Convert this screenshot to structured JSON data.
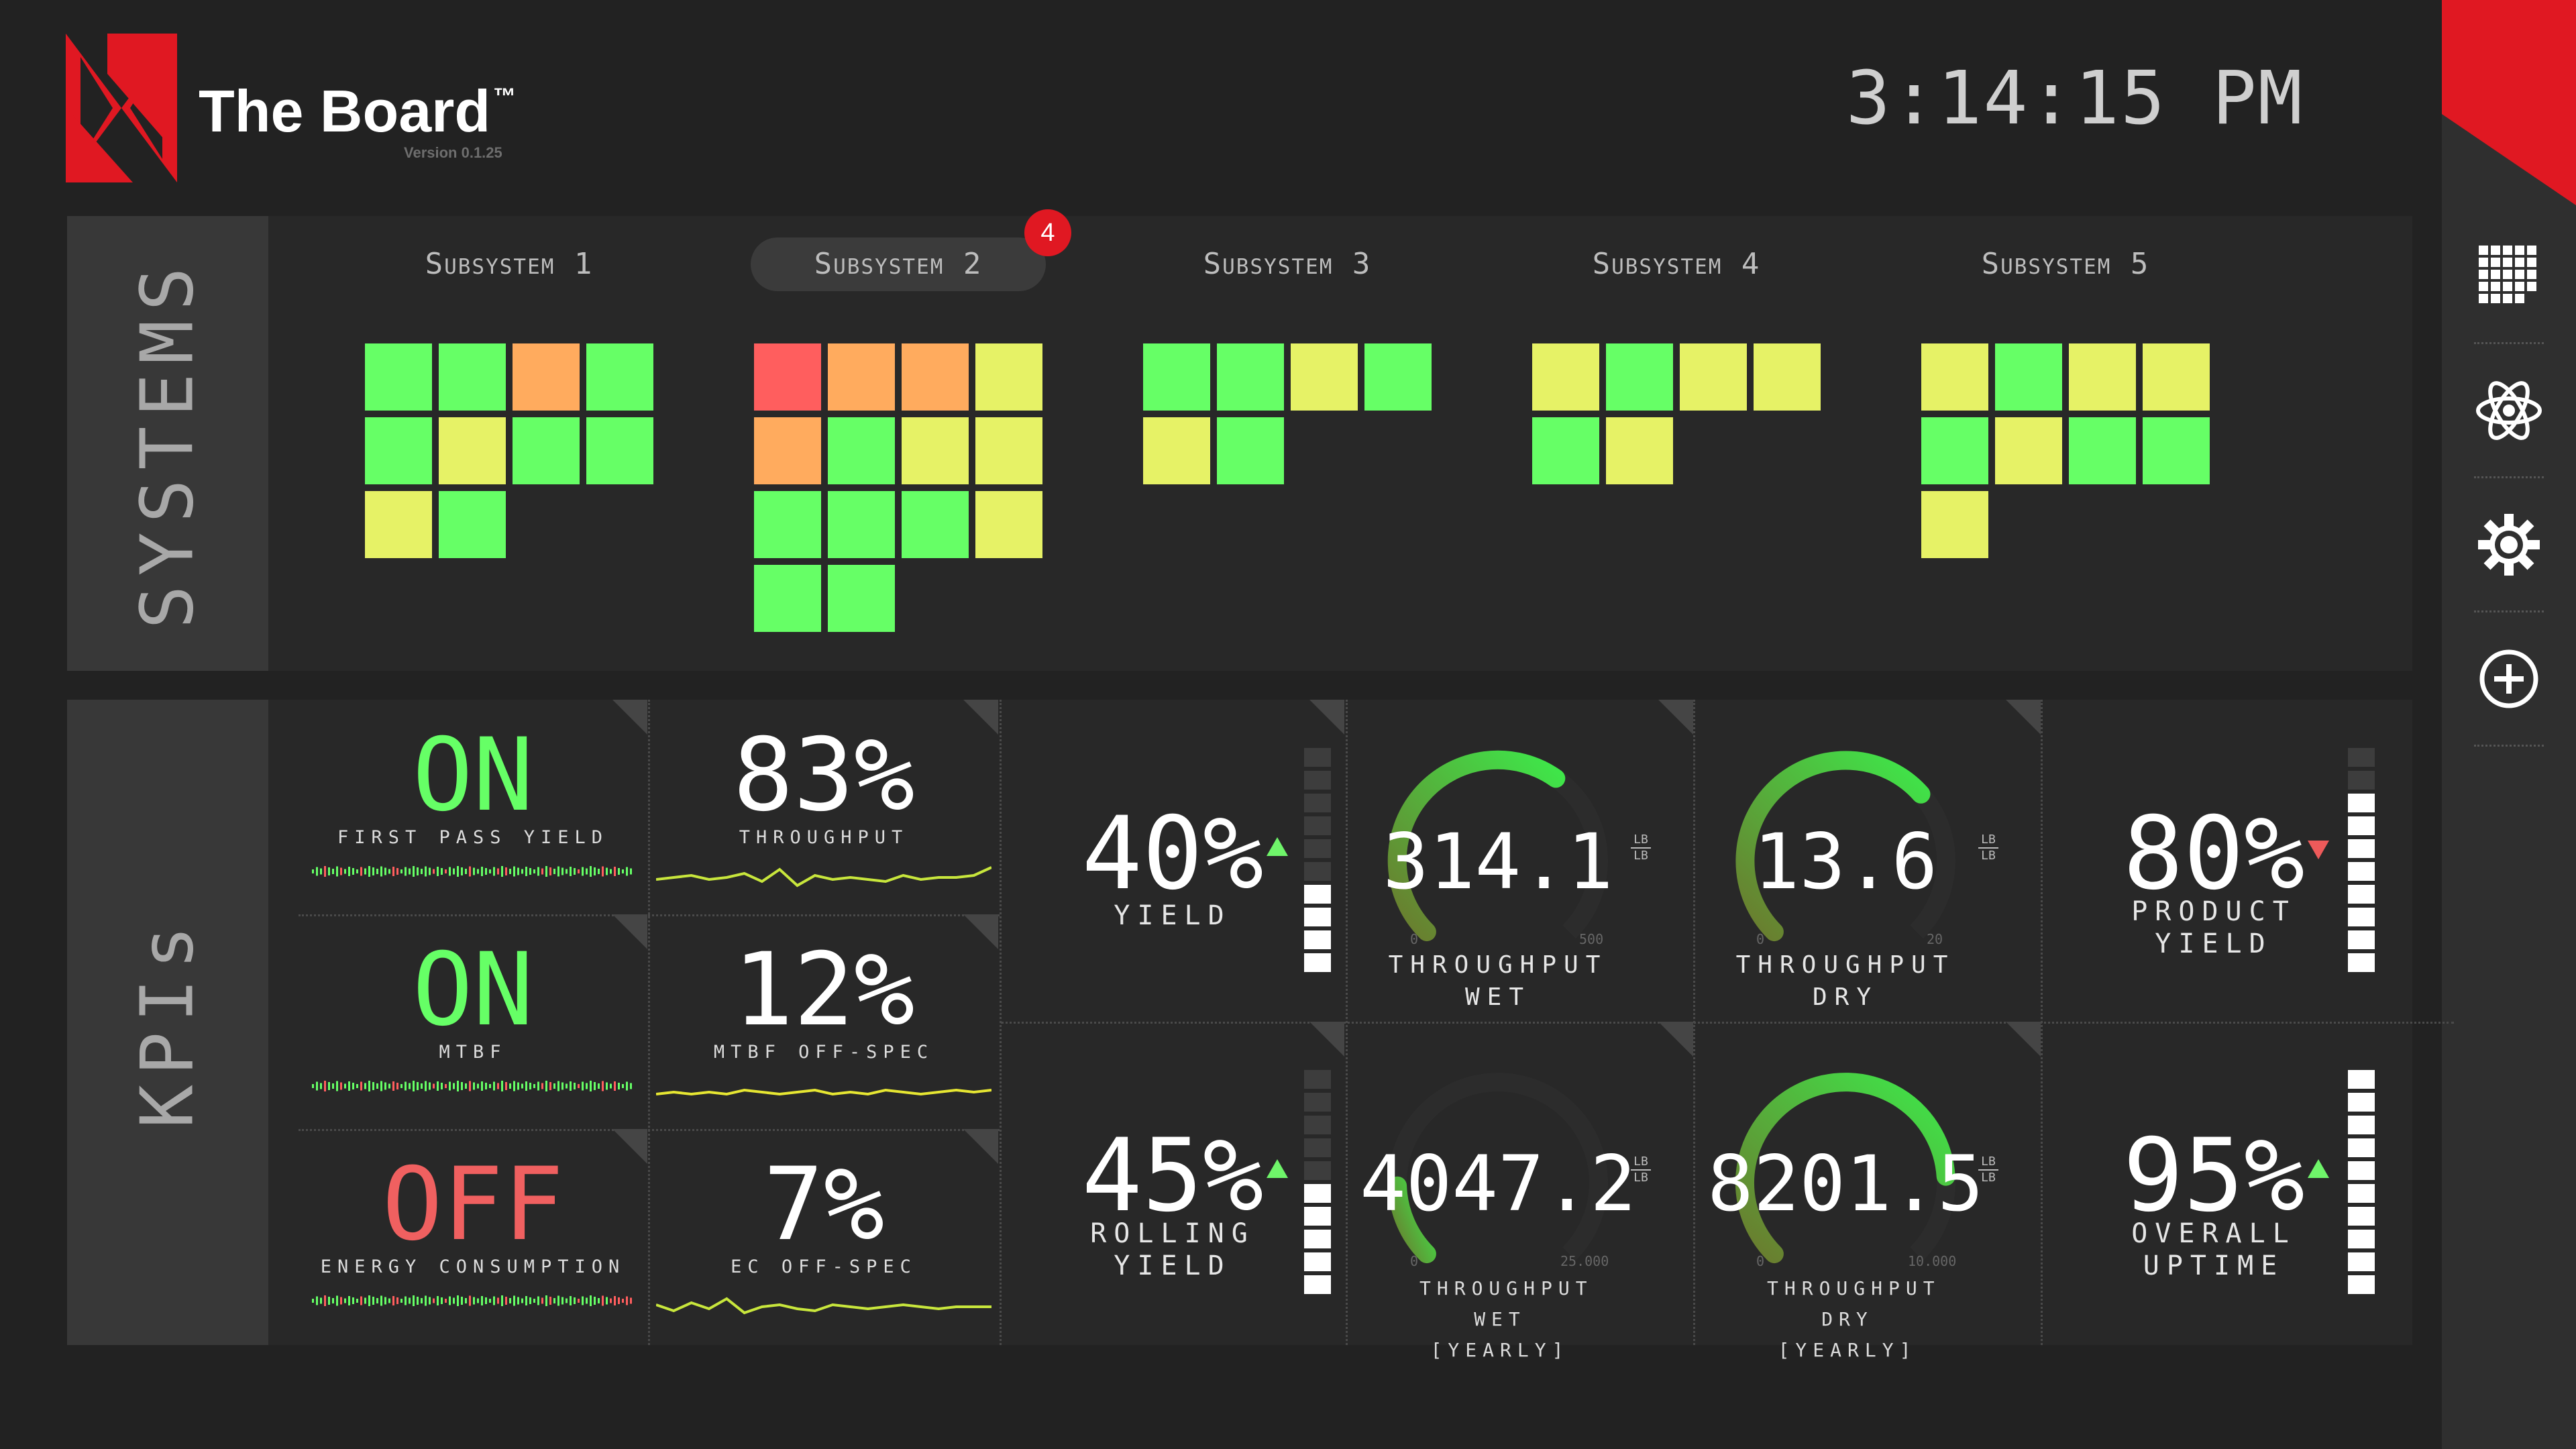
{
  "app": {
    "title": "The Board",
    "tm": "™",
    "version": "Version 0.1.25",
    "time": "3:14:15 PM"
  },
  "colors": {
    "brand_red": "#e01822",
    "green": "#66ff66",
    "yellow_green": "#e6f266",
    "orange": "#ffab5e",
    "red": "#ff5e5e",
    "off_red": "#f06060"
  },
  "sidebar": {
    "icons": [
      "grid-icon",
      "atom-icon",
      "gear-icon",
      "add-circle-icon"
    ]
  },
  "systems": {
    "label": "SYSTEMS",
    "subsystems": [
      {
        "name": "Subsystem 1",
        "selected": false,
        "badge": null,
        "statuses": [
          "green",
          "green",
          "orange",
          "green",
          "green",
          "yellow",
          "green",
          "green",
          "yellow",
          "green"
        ]
      },
      {
        "name": "Subsystem 2",
        "selected": true,
        "badge": "4",
        "statuses": [
          "red",
          "orange",
          "orange",
          "yellow",
          "orange",
          "green",
          "yellow",
          "yellow",
          "green",
          "green",
          "green",
          "yellow",
          "green",
          "green"
        ]
      },
      {
        "name": "Subsystem 3",
        "selected": false,
        "badge": null,
        "statuses": [
          "green",
          "green",
          "yellow",
          "green",
          "yellow",
          "green"
        ]
      },
      {
        "name": "Subsystem 4",
        "selected": false,
        "badge": null,
        "statuses": [
          "yellow",
          "green",
          "yellow",
          "yellow",
          "green",
          "yellow"
        ]
      },
      {
        "name": "Subsystem 5",
        "selected": false,
        "badge": null,
        "statuses": [
          "yellow",
          "green",
          "yellow",
          "yellow",
          "green",
          "yellow",
          "green",
          "green",
          "yellow"
        ]
      }
    ]
  },
  "kpis": {
    "label": "KPIs",
    "status": [
      {
        "value": "ON",
        "label": "FIRST PASS YIELD",
        "state": "on"
      },
      {
        "value": "ON",
        "label": "MTBF",
        "state": "on"
      },
      {
        "value": "OFF",
        "label": "ENERGY CONSUMPTION",
        "state": "off"
      }
    ],
    "percent": [
      {
        "value": "83%",
        "label": "THROUGHPUT",
        "spark_color": "#c8e63c",
        "spark": [
          0.55,
          0.5,
          0.45,
          0.55,
          0.5,
          0.4,
          0.6,
          0.3,
          0.7,
          0.45,
          0.55,
          0.5,
          0.55,
          0.6,
          0.45,
          0.55,
          0.5,
          0.5,
          0.45,
          0.25
        ]
      },
      {
        "value": "12%",
        "label": "MTBF OFF-SPEC",
        "spark_color": "#e6e632",
        "spark": [
          0.55,
          0.5,
          0.55,
          0.5,
          0.55,
          0.45,
          0.5,
          0.55,
          0.5,
          0.45,
          0.55,
          0.5,
          0.55,
          0.45,
          0.5,
          0.55,
          0.5,
          0.45,
          0.5,
          0.45
        ]
      },
      {
        "value": "7%",
        "label": "EC OFF-SPEC",
        "spark_color": "#c8e63c",
        "spark": [
          0.45,
          0.6,
          0.4,
          0.55,
          0.3,
          0.65,
          0.5,
          0.45,
          0.55,
          0.6,
          0.45,
          0.5,
          0.55,
          0.5,
          0.45,
          0.5,
          0.55,
          0.5,
          0.5,
          0.5
        ]
      }
    ],
    "yield": [
      {
        "value": "40%",
        "label": "YIELD",
        "trend": "up",
        "level": 0.4
      },
      {
        "value": "45%",
        "label": "ROLLING YIELD",
        "trend": "up",
        "level": 0.45
      },
      {
        "value": "80%",
        "label": "PRODUCT YIELD",
        "trend": "down",
        "level": 0.8
      },
      {
        "value": "95%",
        "label": "OVERALL UPTIME",
        "trend": "up",
        "level": 0.95
      }
    ],
    "gauges": [
      {
        "value": "314.1",
        "label": "THROUGHPUT WET",
        "unit_top": "LB",
        "unit_bottom": "LB",
        "min": "0",
        "max": "500",
        "fraction": 0.63
      },
      {
        "value": "13.6",
        "label": "THROUGHPUT DRY",
        "unit_top": "LB",
        "unit_bottom": "LB",
        "min": "0",
        "max": "20",
        "fraction": 0.68
      },
      {
        "value": "4047.2",
        "label": "THROUGHPUT WET [YEARLY]",
        "unit_top": "LB",
        "unit_bottom": "LB",
        "min": "0",
        "max": "25.000",
        "fraction": 0.16
      },
      {
        "value": "8201.5",
        "label": "THROUGHPUT DRY [YEARLY]",
        "unit_top": "LB",
        "unit_bottom": "LB",
        "min": "0",
        "max": "10.000",
        "fraction": 0.82
      }
    ]
  }
}
